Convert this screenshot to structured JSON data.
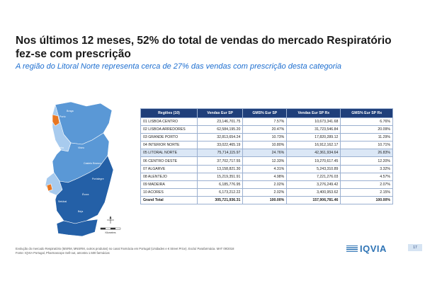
{
  "slide": {
    "title": "Nos últimos 12 meses, 52% do total de vendas do mercado Respiratório fez-se com prescrição",
    "subtitle": "A região do Litoral Norte representa cerca de 27% das vendas com prescrição desta categoria",
    "page_number": "17",
    "logo_text": "IQVIA",
    "footnote_line1": "Evolução do mercado Respiratório (MSRM, MNSRM, outros produtos) no canal Farmácia em Portugal (Unidades e € Street Price). Excluí Parafarmácia. MAT 09/2018",
    "footnote_line2": "Fonte: IQVIA Portugal, Pharmascope Sell-out, amostra 1.500 farmácias",
    "colors": {
      "header": "#1f3f7a",
      "highlight": "#dbe7f6",
      "accent": "#1e6fd0",
      "map_dark": "#2460a7",
      "map_mid": "#5a98d6",
      "map_light": "#a8cbee",
      "map_orange": "#e87722"
    }
  },
  "map": {
    "labels": [
      "Porto",
      "Braga",
      "Aveiro",
      "Viseu",
      "Castelo Branco",
      "Portalegre",
      "Setúbal",
      "Évora",
      "Beja"
    ],
    "scale_label": "Kilometers"
  },
  "table": {
    "headers": [
      "Regiões (10)",
      "Vendas Eur SP",
      "GMS% Eur SP",
      "Vendas Eur SP Rx",
      "GMS% Eur SP Rx"
    ],
    "rows": [
      [
        "01 LISBOA CENTRO",
        "23,146,701.75",
        "7.57%",
        "10,673,341.68",
        "6.76%"
      ],
      [
        "02 LISBOA ARREDORES",
        "62,584,195.20",
        "20.47%",
        "31,723,546.84",
        "20.09%"
      ],
      [
        "03 GRANDE PORTO",
        "32,813,654.24",
        "10.73%",
        "17,820,289.12",
        "11.29%"
      ],
      [
        "04 INTERIOR NORTE",
        "33,022,465.19",
        "10.80%",
        "16,912,162.17",
        "10.71%"
      ],
      [
        "05 LITORAL NORTE",
        "75,714,115.97",
        "24.76%",
        "42,361,934.64",
        "26.83%"
      ],
      [
        "06 CENTRO OESTE",
        "37,702,717.55",
        "12.33%",
        "19,270,617.45",
        "12.20%"
      ],
      [
        "07 ALGARVE",
        "13,158,821.30",
        "4.31%",
        "5,243,310.89",
        "3.32%"
      ],
      [
        "08 ALENTEJO",
        "15,219,351.91",
        "4.98%",
        "7,221,276.03",
        "4.57%"
      ],
      [
        "09 MADEIRA",
        "6,185,776.95",
        "2.02%",
        "3,276,249.42",
        "2.07%"
      ],
      [
        "10 ACORES",
        "6,173,212.22",
        "2.02%",
        "3,400,953.62",
        "2.15%"
      ]
    ],
    "total": [
      "Grand Total",
      "305,721,936.31",
      "100.00%",
      "157,906,781.46",
      "100.00%"
    ]
  }
}
